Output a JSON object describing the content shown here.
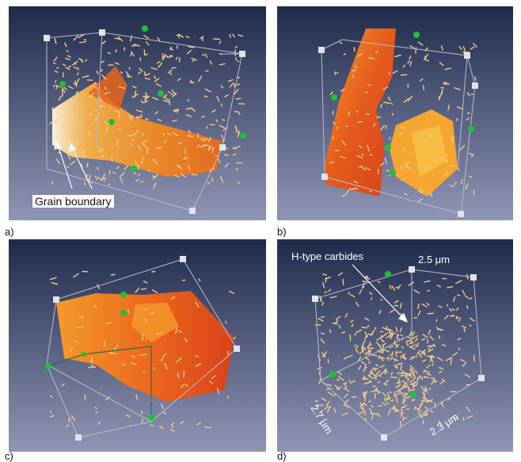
{
  "panels": [
    {
      "label": "a)",
      "annotation": "Grain boundary"
    },
    {
      "label": "b)"
    },
    {
      "label": "c)"
    },
    {
      "label": "d)",
      "annotations": [
        "H-type carbides",
        "2.5 μm",
        "2.7 μm",
        "2.3 μm"
      ]
    }
  ],
  "colors": {
    "bg_top": "#1f2b4b",
    "bg_bottom": "#8f95b5",
    "grain_orange": "#f08a22",
    "grain_red": "#d8401a",
    "carbide": "#f4c98a",
    "node": "#1fbf3a",
    "edge": "#b8bccc"
  }
}
